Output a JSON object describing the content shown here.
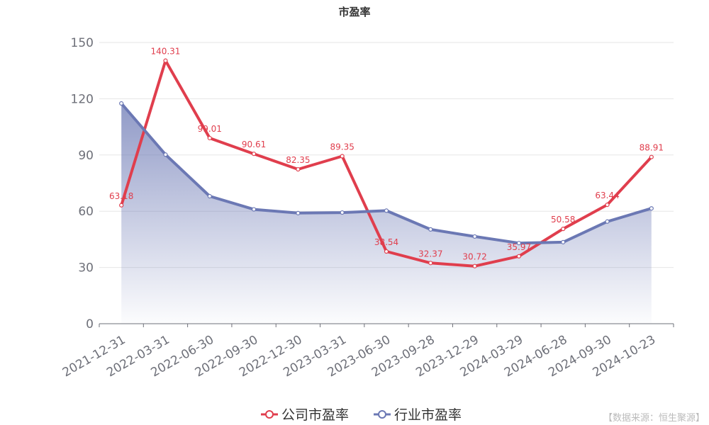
{
  "chart_data": {
    "type": "line",
    "title": "市盈率",
    "categories": [
      "2021-12-31",
      "2022-03-31",
      "2022-06-30",
      "2022-09-30",
      "2022-12-30",
      "2023-03-31",
      "2023-06-30",
      "2023-09-28",
      "2023-12-29",
      "2024-03-29",
      "2024-06-28",
      "2024-09-30",
      "2024-10-23"
    ],
    "series": [
      {
        "name": "公司市盈率",
        "color": "#e03e4d",
        "values": [
          63.18,
          140.31,
          99.01,
          90.61,
          82.35,
          89.35,
          38.54,
          32.37,
          30.72,
          35.97,
          50.58,
          63.44,
          88.91
        ],
        "labels": [
          "63.18",
          "140.31",
          "99.01",
          "90.61",
          "82.35",
          "89.35",
          "38.54",
          "32.37",
          "30.72",
          "35.97",
          "50.58",
          "63.44",
          "88.91"
        ],
        "show_labels": true
      },
      {
        "name": "行业市盈率",
        "color": "#6b78b4",
        "values": [
          117.5,
          90.2,
          68.0,
          61.0,
          59.0,
          59.3,
          60.3,
          50.3,
          46.5,
          43.0,
          43.5,
          54.5,
          61.5
        ],
        "area": true,
        "show_labels": false
      }
    ],
    "ylim": [
      0,
      150
    ],
    "yticks": [
      0,
      30,
      60,
      90,
      120,
      150
    ],
    "grid": true,
    "legend_position": "bottom-center"
  },
  "source": "【数据来源：恒生聚源】"
}
